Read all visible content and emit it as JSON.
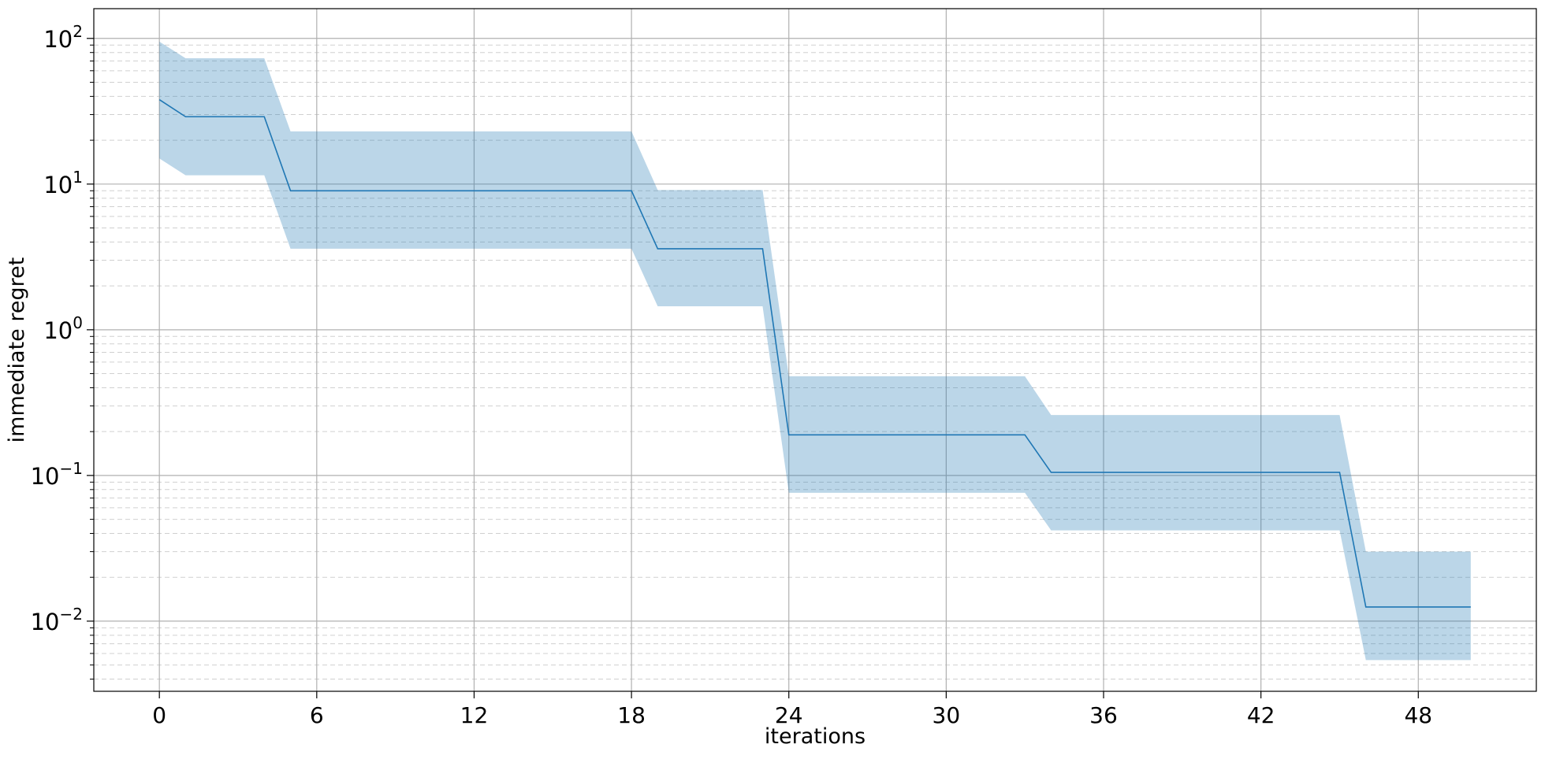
{
  "chart_data": {
    "type": "line",
    "title": "",
    "xlabel": "iterations",
    "ylabel": "immediate regret",
    "xscale": "linear",
    "yscale": "log",
    "xlim": [
      -2.5,
      52.5
    ],
    "ylim": [
      0.0033,
      160
    ],
    "grid": true,
    "legend": "none",
    "line_color": "#1f77b4",
    "band_color": "#1f77b4",
    "x_ticks": [
      0,
      6,
      12,
      18,
      24,
      30,
      36,
      42,
      48
    ],
    "y_ticks": [
      {
        "value": 100,
        "base": "10",
        "exp": "2"
      },
      {
        "value": 10,
        "base": "10",
        "exp": "1"
      },
      {
        "value": 1,
        "base": "10",
        "exp": "0"
      },
      {
        "value": 0.1,
        "base": "10",
        "exp": "−1"
      },
      {
        "value": 0.01,
        "base": "10",
        "exp": "−2"
      }
    ],
    "series": [
      {
        "x": [
          0,
          1,
          2,
          3,
          4,
          5,
          6,
          7,
          8,
          9,
          10,
          11,
          12,
          13,
          14,
          15,
          16,
          17,
          18,
          19,
          20,
          21,
          22,
          23,
          24,
          25,
          26,
          27,
          28,
          29,
          30,
          31,
          32,
          33,
          34,
          35,
          36,
          37,
          38,
          39,
          40,
          41,
          42,
          43,
          44,
          45,
          46,
          47,
          48,
          49,
          50
        ],
        "mean": [
          38,
          29,
          29,
          29,
          29,
          9.0,
          9.0,
          9.0,
          9.0,
          9.0,
          9.0,
          9.0,
          9.0,
          9.0,
          9.0,
          9.0,
          9.0,
          9.0,
          9.0,
          3.6,
          3.6,
          3.6,
          3.6,
          3.6,
          0.19,
          0.19,
          0.19,
          0.19,
          0.19,
          0.19,
          0.19,
          0.19,
          0.19,
          0.19,
          0.105,
          0.105,
          0.105,
          0.105,
          0.105,
          0.105,
          0.105,
          0.105,
          0.105,
          0.105,
          0.105,
          0.105,
          0.0125,
          0.0125,
          0.0125,
          0.0125,
          0.0125
        ],
        "upper": [
          95,
          73,
          73,
          73,
          73,
          23,
          23,
          23,
          23,
          23,
          23,
          23,
          23,
          23,
          23,
          23,
          23,
          23,
          23,
          9.1,
          9.1,
          9.1,
          9.1,
          9.1,
          0.48,
          0.48,
          0.48,
          0.48,
          0.48,
          0.48,
          0.48,
          0.48,
          0.48,
          0.48,
          0.26,
          0.26,
          0.26,
          0.26,
          0.26,
          0.26,
          0.26,
          0.26,
          0.26,
          0.26,
          0.26,
          0.26,
          0.03,
          0.03,
          0.03,
          0.03,
          0.03
        ],
        "lower": [
          15,
          11.5,
          11.5,
          11.5,
          11.5,
          3.6,
          3.6,
          3.6,
          3.6,
          3.6,
          3.6,
          3.6,
          3.6,
          3.6,
          3.6,
          3.6,
          3.6,
          3.6,
          3.6,
          1.45,
          1.45,
          1.45,
          1.45,
          1.45,
          0.076,
          0.076,
          0.076,
          0.076,
          0.076,
          0.076,
          0.076,
          0.076,
          0.076,
          0.076,
          0.042,
          0.042,
          0.042,
          0.042,
          0.042,
          0.042,
          0.042,
          0.042,
          0.042,
          0.042,
          0.042,
          0.042,
          0.0054,
          0.0054,
          0.0054,
          0.0054,
          0.0054
        ]
      }
    ]
  }
}
